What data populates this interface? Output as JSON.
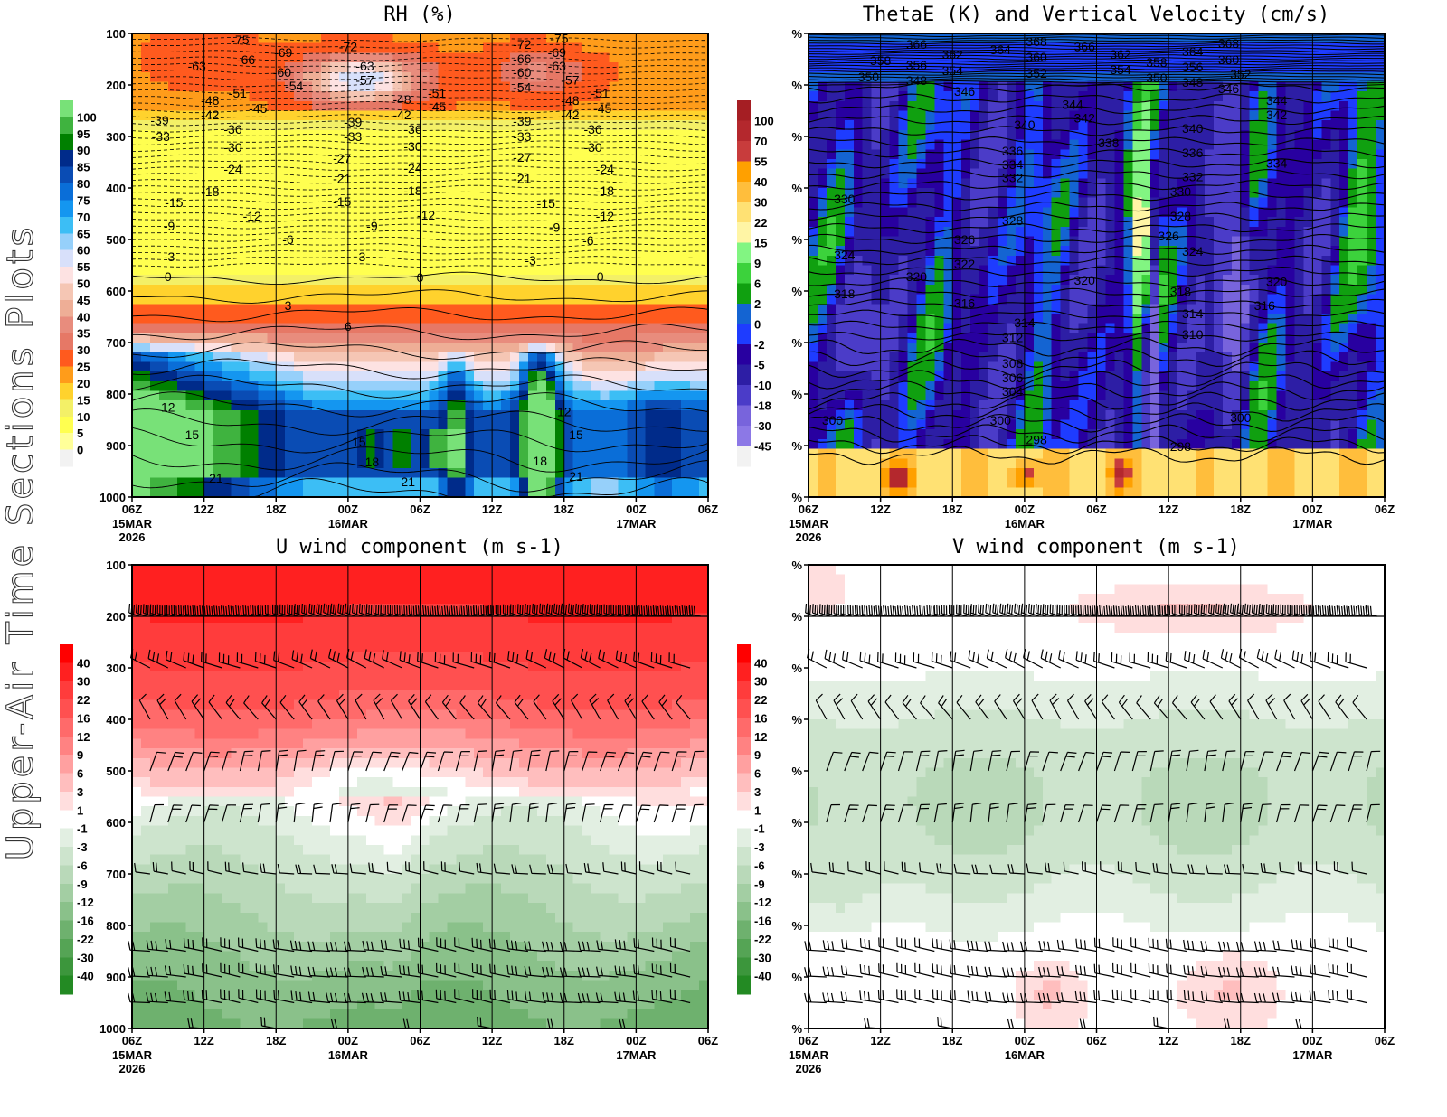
{
  "side_title": "Upper-Air Time Sections Plots",
  "x_ticks": [
    "06Z",
    "12Z",
    "18Z",
    "00Z",
    "06Z",
    "12Z",
    "18Z",
    "00Z",
    "06Z"
  ],
  "x_dates": [
    {
      "tick": 0,
      "lines": [
        "15MAR",
        "2026"
      ]
    },
    {
      "tick": 3,
      "lines": [
        "16MAR"
      ]
    },
    {
      "tick": 7,
      "lines": [
        "17MAR"
      ]
    }
  ],
  "chart_data": [
    {
      "type": "heatmap",
      "title": "RH (%)",
      "y_ticks": [
        "100",
        "200",
        "300",
        "400",
        "500",
        "600",
        "700",
        "800",
        "900",
        "1000"
      ],
      "ylim": [
        100,
        1000
      ],
      "y_reversed": true,
      "xlim_hours": [
        0,
        48
      ],
      "colorbar": {
        "labels": [
          "100",
          "95",
          "90",
          "85",
          "80",
          "75",
          "70",
          "65",
          "60",
          "55",
          "50",
          "45",
          "40",
          "35",
          "30",
          "25",
          "20",
          "15",
          "10",
          "5",
          "0"
        ],
        "colors": [
          "#78e178",
          "#3fb33f",
          "#008000",
          "#002b8a",
          "#0a4cb4",
          "#0a6ed8",
          "#1496f0",
          "#3cbef5",
          "#96d0fa",
          "#d8e0fa",
          "#fde2e2",
          "#f5c6b4",
          "#eeae96",
          "#e88c7d",
          "#e67866",
          "#ff5a1e",
          "#ff9c1a",
          "#ffd22d",
          "#f3f067",
          "#ffff50",
          "#ffff99",
          "#f2f2f2"
        ]
      },
      "contour_labels": [
        [
          9,
          112,
          "-75"
        ],
        [
          5.4,
          163,
          "-63"
        ],
        [
          9.5,
          151,
          "-66"
        ],
        [
          12.6,
          137,
          "-69"
        ],
        [
          12.5,
          175,
          "-60"
        ],
        [
          13.5,
          202,
          "-54"
        ],
        [
          18,
          125,
          "-72"
        ],
        [
          19.4,
          163,
          "-63"
        ],
        [
          19.4,
          190,
          "-57"
        ],
        [
          8.8,
          216,
          "-51"
        ],
        [
          6.5,
          230,
          "-48"
        ],
        [
          6.5,
          258,
          "-42"
        ],
        [
          10.5,
          246,
          "-45"
        ],
        [
          2.3,
          268,
          "-39"
        ],
        [
          2.4,
          300,
          "-33"
        ],
        [
          8.4,
          286,
          "-36"
        ],
        [
          8.4,
          321,
          "-30"
        ],
        [
          8.4,
          363,
          "-24"
        ],
        [
          6.5,
          407,
          "-18"
        ],
        [
          3.5,
          428,
          "-15"
        ],
        [
          10,
          454,
          "-12"
        ],
        [
          3.1,
          474,
          "-9"
        ],
        [
          13,
          500,
          "-6"
        ],
        [
          3.1,
          533,
          "-3"
        ],
        [
          3,
          572,
          "0"
        ],
        [
          13,
          628,
          "3"
        ],
        [
          18,
          668,
          "6"
        ],
        [
          3,
          825,
          "12"
        ],
        [
          5,
          879,
          "15"
        ],
        [
          7,
          963,
          "21"
        ],
        [
          18.4,
          272,
          "-39"
        ],
        [
          18.4,
          300,
          "-33"
        ],
        [
          17.5,
          342,
          "-27"
        ],
        [
          17.5,
          382,
          "-21"
        ],
        [
          17.5,
          426,
          "-15"
        ],
        [
          20,
          474,
          "-9"
        ],
        [
          19,
          533,
          "-3"
        ],
        [
          22.5,
          228,
          "-48"
        ],
        [
          22.5,
          258,
          "-42"
        ],
        [
          23.4,
          286,
          "-36"
        ],
        [
          23.4,
          319,
          "-30"
        ],
        [
          23.4,
          361,
          "-24"
        ],
        [
          23.4,
          405,
          "-18"
        ],
        [
          24.5,
          453,
          "-12"
        ],
        [
          25.4,
          216,
          "-51"
        ],
        [
          25.4,
          242,
          "-45"
        ],
        [
          24,
          574,
          "0"
        ],
        [
          18.9,
          893,
          "15"
        ],
        [
          20,
          932,
          "18"
        ],
        [
          23,
          970,
          "21"
        ],
        [
          32.5,
          121,
          "-72"
        ],
        [
          35.6,
          110,
          "-75"
        ],
        [
          35.4,
          137,
          "-69"
        ],
        [
          32.5,
          149,
          "-66"
        ],
        [
          35.4,
          163,
          "-63"
        ],
        [
          32.5,
          175,
          "-60"
        ],
        [
          36.5,
          190,
          "-57"
        ],
        [
          32.5,
          204,
          "-54"
        ],
        [
          39,
          216,
          "-51"
        ],
        [
          36.5,
          230,
          "-48"
        ],
        [
          39.2,
          246,
          "-45"
        ],
        [
          36.5,
          258,
          "-42"
        ],
        [
          32.5,
          270,
          "-39"
        ],
        [
          38.4,
          286,
          "-36"
        ],
        [
          32.5,
          300,
          "-33"
        ],
        [
          38.4,
          321,
          "-30"
        ],
        [
          32.5,
          340,
          "-27"
        ],
        [
          39.4,
          363,
          "-24"
        ],
        [
          32.5,
          382,
          "-21"
        ],
        [
          39.4,
          405,
          "-18"
        ],
        [
          34.5,
          430,
          "-15"
        ],
        [
          39.4,
          454,
          "-12"
        ],
        [
          35.2,
          476,
          "-9"
        ],
        [
          38,
          502,
          "-6"
        ],
        [
          33.2,
          540,
          "-3"
        ],
        [
          39,
          572,
          "0"
        ],
        [
          36,
          834,
          "12"
        ],
        [
          37,
          879,
          "15"
        ],
        [
          34,
          930,
          "18"
        ],
        [
          37,
          960,
          "21"
        ]
      ]
    },
    {
      "type": "heatmap",
      "title": "ThetaE (K) and Vertical Velocity (cm/s)",
      "y_ticks": [
        "%",
        "%",
        "%",
        "%",
        "%",
        "%",
        "%",
        "%",
        "%",
        "%"
      ],
      "ylim": [
        100,
        1000
      ],
      "y_reversed": true,
      "xlim_hours": [
        0,
        48
      ],
      "colorbar": {
        "labels": [
          "100",
          "70",
          "55",
          "40",
          "30",
          "22",
          "15",
          "9",
          "6",
          "2",
          "0",
          "-2",
          "-5",
          "-10",
          "-18",
          "-30",
          "-45"
        ],
        "colors": [
          "#a51e23",
          "#b4282d",
          "#c83c3c",
          "#ffa000",
          "#ffbe3c",
          "#ffe173",
          "#fff5a5",
          "#82f582",
          "#3cd23c",
          "#10a010",
          "#1464d2",
          "#1e3cff",
          "#2800a0",
          "#2d1ea5",
          "#4b3cc8",
          "#7864dc",
          "#8c78e6",
          "#f2f2f2"
        ]
      },
      "contour_labels": [
        [
          9,
          121,
          "366"
        ],
        [
          12,
          140,
          "362"
        ],
        [
          16,
          132,
          "364"
        ],
        [
          19,
          116,
          "368"
        ],
        [
          19,
          146,
          "360"
        ],
        [
          19,
          177,
          "352"
        ],
        [
          23,
          125,
          "366"
        ],
        [
          26,
          140,
          "362"
        ],
        [
          26,
          170,
          "354"
        ],
        [
          29,
          156,
          "358"
        ],
        [
          29,
          186,
          "350"
        ],
        [
          32,
          135,
          "364"
        ],
        [
          32,
          165,
          "356"
        ],
        [
          32,
          195,
          "348"
        ],
        [
          35,
          119,
          "368"
        ],
        [
          35,
          151,
          "360"
        ],
        [
          36,
          179,
          "352"
        ],
        [
          35,
          207,
          "346"
        ],
        [
          6,
          153,
          "358"
        ],
        [
          5,
          184,
          "350"
        ],
        [
          9,
          161,
          "356"
        ],
        [
          9,
          191,
          "348"
        ],
        [
          12,
          172,
          "354"
        ],
        [
          13,
          212,
          "346"
        ],
        [
          22,
          238,
          "344"
        ],
        [
          23,
          264,
          "342"
        ],
        [
          39,
          230,
          "344"
        ],
        [
          39,
          258,
          "342"
        ],
        [
          18,
          277,
          "340"
        ],
        [
          25,
          312,
          "338"
        ],
        [
          32,
          284,
          "340"
        ],
        [
          17,
          328,
          "336"
        ],
        [
          17,
          354,
          "334"
        ],
        [
          17,
          380,
          "332"
        ],
        [
          32,
          332,
          "336"
        ],
        [
          39,
          352,
          "334"
        ],
        [
          32,
          378,
          "332"
        ],
        [
          3,
          421,
          "330"
        ],
        [
          31,
          407,
          "330"
        ],
        [
          17,
          463,
          "328"
        ],
        [
          31,
          454,
          "328"
        ],
        [
          13,
          500,
          "326"
        ],
        [
          30,
          493,
          "326"
        ],
        [
          3,
          530,
          "324"
        ],
        [
          32,
          523,
          "324"
        ],
        [
          13,
          547,
          "322"
        ],
        [
          9,
          572,
          "320"
        ],
        [
          23,
          579,
          "320"
        ],
        [
          39,
          582,
          "320"
        ],
        [
          3,
          605,
          "318"
        ],
        [
          31,
          601,
          "318"
        ],
        [
          13,
          624,
          "316"
        ],
        [
          38,
          628,
          "316"
        ],
        [
          18,
          661,
          "314"
        ],
        [
          32,
          644,
          "314"
        ],
        [
          17,
          690,
          "312"
        ],
        [
          32,
          684,
          "310"
        ],
        [
          17,
          740,
          "308"
        ],
        [
          17,
          768,
          "306"
        ],
        [
          17,
          795,
          "304"
        ],
        [
          2,
          851,
          "300"
        ],
        [
          16,
          851,
          "300"
        ],
        [
          36,
          846,
          "300"
        ],
        [
          19,
          889,
          "298"
        ],
        [
          31,
          902,
          "298"
        ]
      ]
    },
    {
      "type": "heatmap",
      "title": "U wind component (m s-1)",
      "y_ticks": [
        "100",
        "200",
        "300",
        "400",
        "500",
        "600",
        "700",
        "800",
        "900",
        "1000"
      ],
      "ylim": [
        100,
        1000
      ],
      "y_reversed": true,
      "xlim_hours": [
        0,
        48
      ],
      "colorbar": {
        "labels": [
          "40",
          "30",
          "22",
          "16",
          "12",
          "9",
          "6",
          "3",
          "1",
          "-1",
          "-3",
          "-6",
          "-9",
          "-12",
          "-16",
          "-22",
          "-30",
          "-40"
        ],
        "colors": [
          "#ff0000",
          "#ff2020",
          "#ff3c3c",
          "#ff5050",
          "#ff6a6a",
          "#ff8282",
          "#ffa0a0",
          "#ffbebe",
          "#ffdede",
          "#ffffff",
          "#e2efe2",
          "#cde4cd",
          "#b9d9b9",
          "#a3cea3",
          "#8ac18a",
          "#6eb16e",
          "#55a455",
          "#3c963c",
          "#238a23"
        ]
      },
      "contour_labels": []
    },
    {
      "type": "heatmap",
      "title": "V wind component (m s-1)",
      "y_ticks": [
        "%",
        "%",
        "%",
        "%",
        "%",
        "%",
        "%",
        "%",
        "%",
        "%"
      ],
      "ylim": [
        100,
        1000
      ],
      "y_reversed": true,
      "xlim_hours": [
        0,
        48
      ],
      "colorbar": {
        "labels": [
          "40",
          "30",
          "22",
          "16",
          "12",
          "9",
          "6",
          "3",
          "1",
          "-1",
          "-3",
          "-6",
          "-9",
          "-12",
          "-16",
          "-22",
          "-30",
          "-40"
        ],
        "colors": [
          "#ff0000",
          "#ff2020",
          "#ff3c3c",
          "#ff5050",
          "#ff6a6a",
          "#ff8282",
          "#ffa0a0",
          "#ffbebe",
          "#ffdede",
          "#ffffff",
          "#e2efe2",
          "#cde4cd",
          "#b9d9b9",
          "#a3cea3",
          "#8ac18a",
          "#6eb16e",
          "#55a455",
          "#3c963c",
          "#238a23"
        ]
      },
      "contour_labels": []
    }
  ]
}
